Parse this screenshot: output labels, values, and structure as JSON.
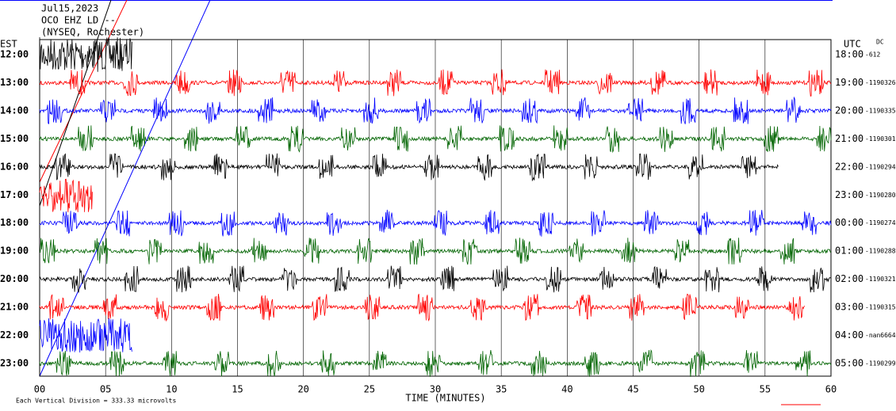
{
  "chart_data": {
    "type": "helicorder",
    "header": [
      "Jul15,2023",
      "OCO EHZ LD --",
      "(NYSEQ, Rochester)"
    ],
    "left_unit": "EST",
    "right_unit": "UTC",
    "dc_label": "DC",
    "x_label": "TIME (MINUTES)",
    "footnote": "Each Vertical Division =  333.33 microvolts",
    "xlim": [
      0,
      60
    ],
    "xticks": [
      {
        "value": 0,
        "label": "00"
      },
      {
        "value": 5,
        "label": "05"
      },
      10,
      15,
      20,
      25,
      30,
      35,
      40,
      45,
      50,
      55,
      60
    ],
    "grid": true,
    "rows": [
      {
        "left": "12:00",
        "right": "18:00",
        "dc": "-612",
        "color": "#000000"
      },
      {
        "left": "13:00",
        "right": "19:00",
        "dc": "-1190326",
        "color": "#ff0000"
      },
      {
        "left": "14:00",
        "right": "20:00",
        "dc": "-1190335",
        "color": "#0000ff"
      },
      {
        "left": "15:00",
        "right": "21:00",
        "dc": "-1190301",
        "color": "#006400"
      },
      {
        "left": "16:00",
        "right": "22:00",
        "dc": "-1190294",
        "color": "#000000"
      },
      {
        "left": "17:00",
        "right": "23:00",
        "dc": "-1190280",
        "color": "#ff0000"
      },
      {
        "left": "18:00",
        "right": "00:00",
        "dc": "-1190274",
        "color": "#0000ff"
      },
      {
        "left": "19:00",
        "right": "01:00",
        "dc": "-1190288",
        "color": "#006400"
      },
      {
        "left": "20:00",
        "right": "02:00",
        "dc": "-1190321",
        "color": "#000000"
      },
      {
        "left": "21:00",
        "right": "03:00",
        "dc": "-1190315",
        "color": "#ff0000"
      },
      {
        "left": "22:00",
        "right": "04:00",
        "dc": "-nan6664",
        "color": "#0000ff"
      },
      {
        "left": "23:00",
        "right": "05:00",
        "dc": "-1190299",
        "color": "#006400"
      }
    ]
  }
}
